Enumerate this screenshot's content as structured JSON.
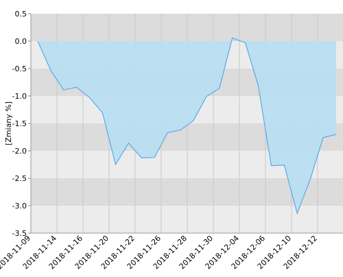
{
  "chart_data": {
    "type": "area",
    "y_label": "[Zmiany %]",
    "x_tick_labels": [
      "2018-11-09",
      "2018-11-14",
      "2018-11-16",
      "2018-11-20",
      "2018-11-22",
      "2018-11-26",
      "2018-11-28",
      "2018-11-30",
      "2018-12-04",
      "2018-12-06",
      "2018-12-10",
      "2018-12-12"
    ],
    "values": [
      0.0,
      -0.53,
      -0.89,
      -0.84,
      -1.03,
      -1.31,
      -2.25,
      -1.86,
      -2.13,
      -2.12,
      -1.67,
      -1.62,
      -1.45,
      -1.01,
      -0.86,
      0.06,
      -0.03,
      -0.81,
      -2.27,
      -2.26,
      -3.14,
      -2.52,
      -1.76,
      -1.7
    ],
    "color": "#5aa9e6",
    "fill": "#b7dff2",
    "ylim": [
      -3.5,
      0.5
    ],
    "yticks": [
      0.5,
      {
        "value": 0,
        "label": "0.0"
      },
      -0.5,
      {
        "value": -1,
        "label": "-1.0"
      },
      -1.5,
      {
        "value": -2,
        "label": "-2.0"
      },
      -2.5,
      {
        "value": -3,
        "label": "-3.0"
      },
      -3.5
    ],
    "grid": true
  }
}
